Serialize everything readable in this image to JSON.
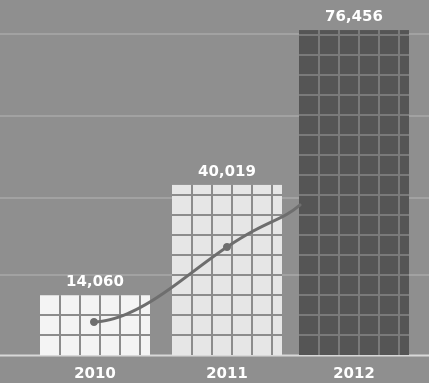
{
  "chart_data": {
    "type": "bar",
    "categories": [
      "2010",
      "2011",
      "2012"
    ],
    "values": [
      14060,
      40019,
      76456
    ],
    "value_labels": [
      "14,060",
      "40,019",
      "76,456"
    ],
    "ylim": [
      0,
      80000
    ],
    "grid": true,
    "trend_line": true,
    "colors": {
      "background": "#8f8f8f",
      "gridline": "#b5b5b5",
      "bar_light": "#f4f4f4",
      "bar_mid": "#e6e6e6",
      "bar_dark": "#555555",
      "bar_cell_dark": "#474747",
      "cell_line_light": "#8c8c8c",
      "cell_line_dark": "#7a7a7a",
      "trend": "#6e6e6e",
      "text": "#ffffff"
    }
  }
}
